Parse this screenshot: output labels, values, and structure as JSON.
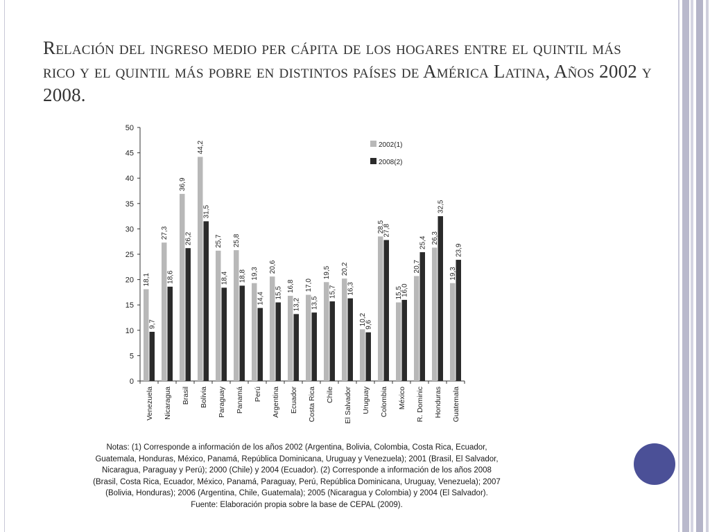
{
  "slide": {
    "title": "Relación del ingreso medio per cápita de los hogares entre el quintil más rico y el quintil más pobre en distintos países de América Latina, Años 2002 y 2008."
  },
  "colors": {
    "series_2002": "#b8b8b8",
    "series_2008": "#2b2b2b",
    "accent_dot": "#4b5097"
  },
  "chart_data": {
    "type": "bar",
    "categories": [
      "Venezuela",
      "Nicaragua",
      "Brasil",
      "Bolivia",
      "Paraguay",
      "Panamá",
      "Perú",
      "Argentina",
      "Ecuador",
      "Costa Rica",
      "Chile",
      "El Salvador",
      "Uruguay",
      "Colombia",
      "México",
      "R. Dominic",
      "Honduras",
      "Guatemala"
    ],
    "series": [
      {
        "name": "2002(1)",
        "values": [
          18.1,
          27.3,
          36.9,
          44.2,
          25.7,
          25.8,
          19.3,
          20.6,
          16.8,
          17.0,
          19.5,
          20.2,
          10.2,
          28.5,
          15.5,
          20.7,
          26.3,
          19.3
        ],
        "labels": [
          "18,1",
          "27,3",
          "36,9",
          "44,2",
          "25,7",
          "25,8",
          "19,3",
          "20,6",
          "16,8",
          "17,0",
          "19,5",
          "20,2",
          "10,2",
          "28,5",
          "15,5",
          "20,7",
          "26,3",
          "19,3"
        ]
      },
      {
        "name": "2008(2)",
        "values": [
          9.7,
          18.6,
          26.2,
          31.5,
          18.4,
          18.8,
          14.4,
          15.5,
          13.2,
          13.5,
          15.7,
          16.3,
          9.6,
          27.8,
          16.0,
          25.4,
          32.5,
          23.9
        ],
        "labels": [
          "9,7",
          "18,6",
          "26,2",
          "31,5",
          "18,4",
          "18,8",
          "14,4",
          "15,5",
          "13,2",
          "13,5",
          "15,7",
          "16,3",
          "9,6",
          "27,8",
          "16,0",
          "25,4",
          "32,5",
          "23,9"
        ]
      }
    ],
    "yticks": [
      "0",
      "5",
      "10",
      "15",
      "20",
      "25",
      "30",
      "35",
      "40",
      "45",
      "50"
    ],
    "ylim": [
      0,
      50
    ],
    "legend_position": "top-right",
    "grid": false
  },
  "notes": {
    "lines": [
      "Notas: (1) Corresponde a información de los años 2002 (Argentina, Bolivia, Colombia, Costa Rica, Ecuador,",
      "Guatemala, Honduras, México, Panamá, República Dominicana, Uruguay y Venezuela); 2001 (Brasil, El Salvador,",
      "Nicaragua, Paraguay y Perú); 2000 (Chile) y 2004 (Ecuador). (2) Corresponde a información de los años 2008",
      "(Brasil, Costa Rica, Ecuador, México, Panamá, Paraguay, Perú, República Dominicana, Uruguay, Venezuela); 2007",
      "(Bolivia, Honduras); 2006 (Argentina, Chile, Guatemala); 2005 (Nicaragua y Colombia) y 2004 (El Salvador).",
      "Fuente: Elaboración propia sobre la base de CEPAL (2009)."
    ]
  }
}
